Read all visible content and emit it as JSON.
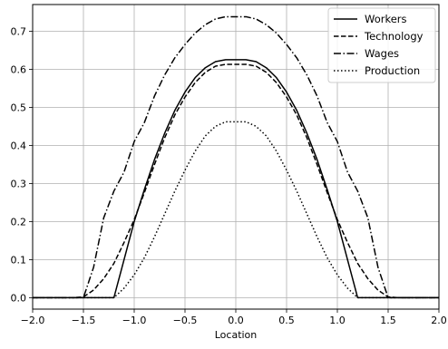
{
  "chart_data": {
    "type": "line",
    "title": "",
    "xlabel": "Location",
    "ylabel": "",
    "xlim": [
      -2.0,
      2.0
    ],
    "ylim": [
      -0.03,
      0.77
    ],
    "xticks": [
      -2.0,
      -1.5,
      -1.0,
      -0.5,
      0.0,
      0.5,
      1.0,
      1.5,
      2.0
    ],
    "xtick_labels": [
      "−2.0",
      "−1.5",
      "−1.0",
      "−0.5",
      "0.0",
      "0.5",
      "1.0",
      "1.5",
      "2.0"
    ],
    "yticks": [
      0.0,
      0.1,
      0.2,
      0.3,
      0.4,
      0.5,
      0.6,
      0.7
    ],
    "ytick_labels": [
      "0.0",
      "0.1",
      "0.2",
      "0.3",
      "0.4",
      "0.5",
      "0.6",
      "0.7"
    ],
    "grid": true,
    "legend_position": "top-right",
    "x": [
      -2.0,
      -1.8,
      -1.6,
      -1.5,
      -1.4,
      -1.3,
      -1.2,
      -1.1,
      -1.0,
      -0.9,
      -0.8,
      -0.7,
      -0.6,
      -0.5,
      -0.4,
      -0.3,
      -0.2,
      -0.1,
      0.0,
      0.1,
      0.2,
      0.3,
      0.4,
      0.5,
      0.6,
      0.7,
      0.8,
      0.9,
      1.0,
      1.1,
      1.2,
      1.3,
      1.4,
      1.5,
      1.6,
      1.8,
      2.0
    ],
    "series": [
      {
        "name": "Workers",
        "style": "solid",
        "values": [
          0,
          0,
          0,
          0,
          0,
          0,
          0,
          0.1,
          0.2,
          0.284,
          0.363,
          0.432,
          0.492,
          0.54,
          0.578,
          0.604,
          0.62,
          0.625,
          0.625,
          0.625,
          0.62,
          0.604,
          0.578,
          0.54,
          0.492,
          0.432,
          0.363,
          0.284,
          0.2,
          0.1,
          0,
          0,
          0,
          0,
          0,
          0,
          0
        ]
      },
      {
        "name": "Technology",
        "style": "dashed",
        "values": [
          0,
          0,
          0,
          0.002,
          0.02,
          0.05,
          0.09,
          0.145,
          0.205,
          0.276,
          0.35,
          0.42,
          0.48,
          0.527,
          0.565,
          0.592,
          0.608,
          0.613,
          0.613,
          0.613,
          0.608,
          0.592,
          0.565,
          0.527,
          0.48,
          0.42,
          0.35,
          0.276,
          0.205,
          0.145,
          0.09,
          0.05,
          0.02,
          0.002,
          0,
          0,
          0
        ]
      },
      {
        "name": "Wages",
        "style": "dashdot",
        "values": [
          0,
          0,
          0,
          0,
          0.08,
          0.21,
          0.28,
          0.33,
          0.41,
          0.46,
          0.53,
          0.585,
          0.63,
          0.665,
          0.695,
          0.717,
          0.732,
          0.738,
          0.738,
          0.738,
          0.732,
          0.717,
          0.695,
          0.665,
          0.63,
          0.585,
          0.53,
          0.46,
          0.41,
          0.33,
          0.28,
          0.21,
          0.08,
          0,
          0,
          0,
          0
        ]
      },
      {
        "name": "Production",
        "style": "dotted",
        "values": [
          0,
          0,
          0,
          0,
          0,
          0,
          0,
          0.025,
          0.06,
          0.105,
          0.16,
          0.22,
          0.28,
          0.335,
          0.385,
          0.425,
          0.45,
          0.462,
          0.462,
          0.462,
          0.45,
          0.425,
          0.385,
          0.335,
          0.28,
          0.22,
          0.16,
          0.105,
          0.06,
          0.025,
          0,
          0,
          0,
          0,
          0,
          0,
          0
        ]
      }
    ]
  }
}
